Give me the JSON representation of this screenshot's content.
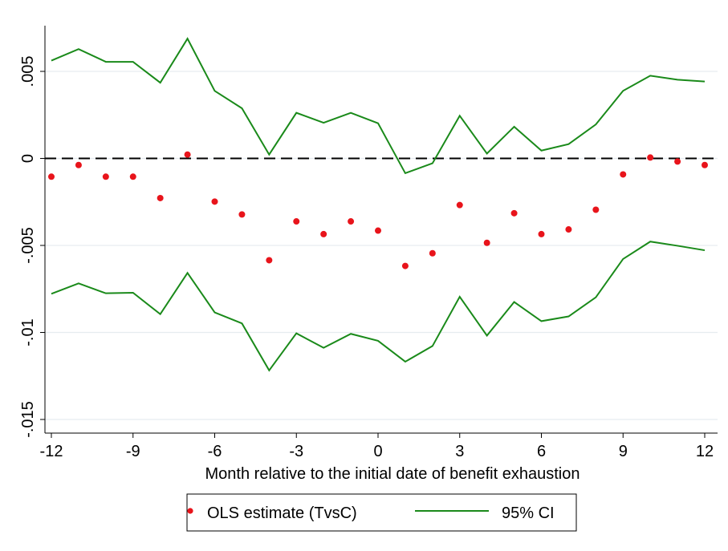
{
  "chart_data": {
    "type": "scatter",
    "title": "",
    "xlabel": "Month relative to the initial date of benefit exhaustion",
    "ylabel": "",
    "xlim": [
      -12,
      12
    ],
    "ylim": [
      -0.015,
      0.005
    ],
    "x_ticks": [
      -12,
      -9,
      -6,
      -3,
      0,
      3,
      6,
      9,
      12
    ],
    "x_tick_labels": [
      "-12",
      "-9",
      "-6",
      "-3",
      "0",
      "3",
      "6",
      "9",
      "12"
    ],
    "y_ticks": [
      -0.015,
      -0.01,
      -0.005,
      0,
      0.005
    ],
    "y_tick_labels": [
      "-.015",
      "-.01",
      "-.005",
      "0",
      ".005"
    ],
    "grid": "horizontal",
    "reference_line": {
      "y": 0,
      "style": "dashed"
    },
    "legend_position": "bottom",
    "x": [
      -12,
      -11,
      -10,
      -9,
      -8,
      -7,
      -6,
      -5,
      -4,
      -3,
      -2,
      -1,
      0,
      1,
      2,
      3,
      4,
      5,
      6,
      7,
      8,
      9,
      10,
      11,
      12
    ],
    "series": [
      {
        "name": "OLS estimate (TvsC)",
        "kind": "points",
        "color": "#e8141b",
        "values": [
          -0.00105,
          -0.00038,
          -0.00105,
          -0.00105,
          -0.00228,
          0.00022,
          -0.00248,
          -0.00322,
          -0.00585,
          -0.00362,
          -0.00435,
          -0.00362,
          -0.00415,
          -0.00618,
          -0.00545,
          -0.00268,
          -0.00485,
          -0.00315,
          -0.00435,
          -0.00408,
          -0.00295,
          -0.00092,
          5e-05,
          -0.00018,
          -0.00038
        ]
      },
      {
        "name": "95% CI",
        "kind": "line",
        "color": "#1a8a1a",
        "values": [
          0.00562,
          0.00628,
          0.00555,
          0.00555,
          0.00435,
          0.00688,
          0.00388,
          0.00288,
          0.00022,
          0.00262,
          0.00205,
          0.00262,
          0.00202,
          -0.00085,
          -0.00028,
          0.00245,
          0.00028,
          0.00182,
          0.00045,
          0.00082,
          0.00195,
          0.00388,
          0.00475,
          0.00452,
          0.00442
        ]
      },
      {
        "name": "95% CI lower",
        "kind": "line",
        "color": "#1a8a1a",
        "values": [
          -0.00778,
          -0.00718,
          -0.00775,
          -0.00772,
          -0.00895,
          -0.00658,
          -0.00885,
          -0.00948,
          -0.01218,
          -0.01005,
          -0.01088,
          -0.01008,
          -0.01048,
          -0.01168,
          -0.01078,
          -0.00795,
          -0.01018,
          -0.00825,
          -0.00935,
          -0.00908,
          -0.00798,
          -0.00578,
          -0.00478,
          -0.00502,
          -0.00528
        ]
      }
    ]
  }
}
